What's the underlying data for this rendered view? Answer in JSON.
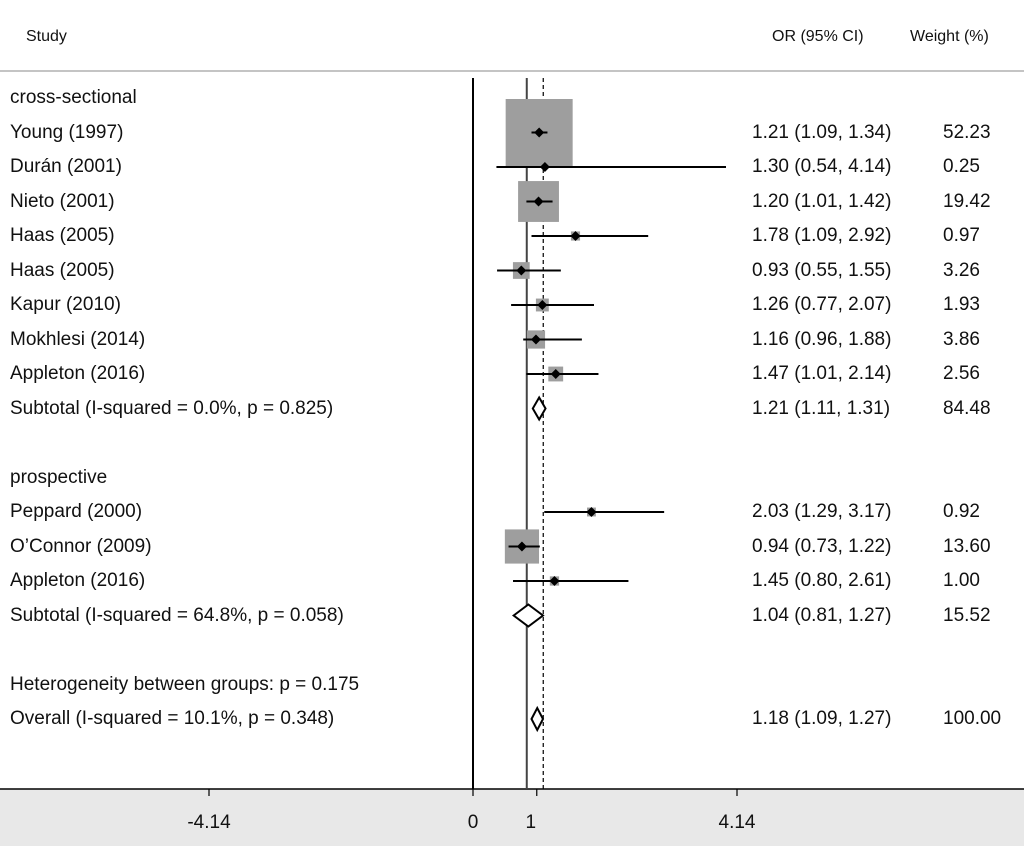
{
  "headers": {
    "study": "Study",
    "or": "OR (95% CI)",
    "weight": "Weight (%)"
  },
  "chart_data": {
    "type": "forest",
    "groups": [
      {
        "name": "cross-sectional",
        "studies": [
          {
            "label": "Young (1997)",
            "or": 1.21,
            "lo": 1.09,
            "hi": 1.34,
            "weight": 52.23,
            "or_text": "1.21 (1.09, 1.34)",
            "weight_text": "52.23"
          },
          {
            "label": "Durán (2001)",
            "or": 1.3,
            "lo": 0.54,
            "hi": 4.14,
            "weight": 0.25,
            "or_text": "1.30 (0.54, 4.14)",
            "weight_text": "0.25"
          },
          {
            "label": "Nieto (2001)",
            "or": 1.2,
            "lo": 1.01,
            "hi": 1.42,
            "weight": 19.42,
            "or_text": "1.20 (1.01, 1.42)",
            "weight_text": "19.42"
          },
          {
            "label": "Haas (2005)",
            "or": 1.78,
            "lo": 1.09,
            "hi": 2.92,
            "weight": 0.97,
            "or_text": "1.78 (1.09, 2.92)",
            "weight_text": "0.97"
          },
          {
            "label": "Haas (2005)",
            "or": 0.93,
            "lo": 0.55,
            "hi": 1.55,
            "weight": 3.26,
            "or_text": "0.93 (0.55, 1.55)",
            "weight_text": "3.26"
          },
          {
            "label": "Kapur (2010)",
            "or": 1.26,
            "lo": 0.77,
            "hi": 2.07,
            "weight": 1.93,
            "or_text": "1.26 (0.77, 2.07)",
            "weight_text": "1.93"
          },
          {
            "label": "Mokhlesi (2014)",
            "or": 1.16,
            "lo": 0.96,
            "hi": 1.88,
            "weight": 3.86,
            "or_text": "1.16 (0.96, 1.88)",
            "weight_text": "3.86"
          },
          {
            "label": "Appleton (2016)",
            "or": 1.47,
            "lo": 1.01,
            "hi": 2.14,
            "weight": 2.56,
            "or_text": "1.47 (1.01, 2.14)",
            "weight_text": "2.56"
          }
        ],
        "subtotal": {
          "label": "Subtotal  (I-squared = 0.0%, p = 0.825)",
          "or": 1.21,
          "lo": 1.11,
          "hi": 1.31,
          "weight": 84.48,
          "or_text": "1.21 (1.11, 1.31)",
          "weight_text": "84.48"
        }
      },
      {
        "name": "prospective",
        "studies": [
          {
            "label": "Peppard (2000)",
            "or": 2.03,
            "lo": 1.29,
            "hi": 3.17,
            "weight": 0.92,
            "or_text": "2.03 (1.29, 3.17)",
            "weight_text": "0.92"
          },
          {
            "label": "O’Connor (2009)",
            "or": 0.94,
            "lo": 0.73,
            "hi": 1.22,
            "weight": 13.6,
            "or_text": "0.94 (0.73, 1.22)",
            "weight_text": "13.60"
          },
          {
            "label": "Appleton (2016)",
            "or": 1.45,
            "lo": 0.8,
            "hi": 2.61,
            "weight": 1.0,
            "or_text": "1.45 (0.80, 2.61)",
            "weight_text": "1.00"
          }
        ],
        "subtotal": {
          "label": "Subtotal  (I-squared = 64.8%, p = 0.058)",
          "or": 1.04,
          "lo": 0.81,
          "hi": 1.27,
          "weight": 15.52,
          "or_text": "1.04 (0.81, 1.27)",
          "weight_text": "15.52"
        }
      }
    ],
    "heterogeneity": "Heterogeneity between groups: p = 0.175",
    "overall": {
      "label": "Overall  (I-squared = 10.1%, p = 0.348)",
      "or": 1.18,
      "lo": 1.09,
      "hi": 1.27,
      "weight": 100.0,
      "or_text": "1.18 (1.09, 1.27)",
      "weight_text": "100.00"
    },
    "x_axis": {
      "ticks": [
        -4.14,
        0,
        1,
        4.14
      ],
      "tick_labels": [
        "-4.14",
        "0",
        "1",
        "4.14"
      ],
      "range": [
        -4.14,
        4.14
      ]
    },
    "null_line": 0,
    "reference_line": 1,
    "colors": {
      "box": "#9e9e9e",
      "line": "#000000",
      "band": "#e8e8e8"
    }
  }
}
